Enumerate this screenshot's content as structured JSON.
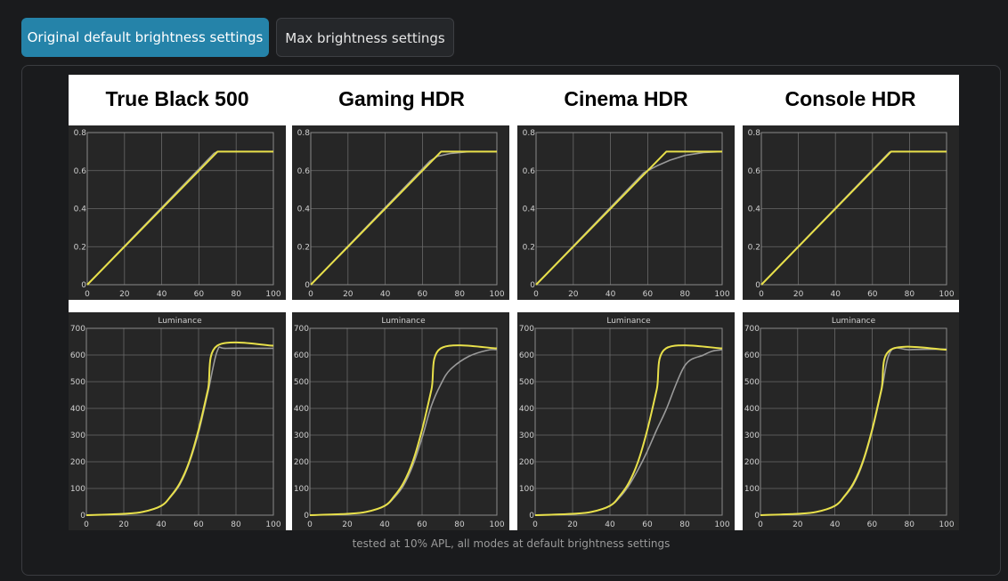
{
  "tabs": [
    {
      "label": "Original default brightness settings",
      "active": true
    },
    {
      "label": "Max brightness settings",
      "active": false
    }
  ],
  "caption": "tested at 10% APL, all modes at default brightness settings",
  "colors": {
    "target": "#e8e04a",
    "measured": "#9a9a9a",
    "plot_bg": "#262626",
    "grid": "#6a6a6a",
    "axis_text": "#d0d0d0",
    "accent": "#2583a9"
  },
  "chart_data": [
    {
      "type": "line",
      "mode": "True Black 500",
      "row": "eotf",
      "xlim": [
        0,
        100
      ],
      "ylim": [
        0,
        0.8
      ],
      "x_ticks": [
        0,
        20,
        40,
        60,
        80,
        100
      ],
      "y_ticks": [
        0,
        0.2,
        0.4,
        0.6,
        0.8
      ],
      "grid": true,
      "series": [
        {
          "role": "target",
          "x": [
            0,
            70,
            100
          ],
          "y": [
            0,
            0.7,
            0.7
          ]
        },
        {
          "role": "measured",
          "x": [
            0,
            68,
            70,
            100
          ],
          "y": [
            0,
            0.69,
            0.7,
            0.7
          ]
        }
      ]
    },
    {
      "type": "line",
      "mode": "Gaming HDR",
      "row": "eotf",
      "xlim": [
        0,
        100
      ],
      "ylim": [
        0,
        0.8
      ],
      "x_ticks": [
        0,
        20,
        40,
        60,
        80,
        100
      ],
      "y_ticks": [
        0,
        0.2,
        0.4,
        0.6,
        0.8
      ],
      "grid": true,
      "series": [
        {
          "role": "target",
          "x": [
            0,
            70,
            100
          ],
          "y": [
            0,
            0.7,
            0.7
          ]
        },
        {
          "role": "measured",
          "x": [
            0,
            64,
            68,
            75,
            85,
            100
          ],
          "y": [
            0,
            0.65,
            0.675,
            0.69,
            0.7,
            0.7
          ]
        }
      ]
    },
    {
      "type": "line",
      "mode": "Cinema HDR",
      "row": "eotf",
      "xlim": [
        0,
        100
      ],
      "ylim": [
        0,
        0.8
      ],
      "x_ticks": [
        0,
        20,
        40,
        60,
        80,
        100
      ],
      "y_ticks": [
        0,
        0.2,
        0.4,
        0.6,
        0.8
      ],
      "grid": true,
      "series": [
        {
          "role": "target",
          "x": [
            0,
            70,
            100
          ],
          "y": [
            0,
            0.7,
            0.7
          ]
        },
        {
          "role": "measured",
          "x": [
            0,
            58,
            65,
            72,
            80,
            90,
            100
          ],
          "y": [
            0,
            0.59,
            0.625,
            0.655,
            0.68,
            0.695,
            0.7
          ]
        }
      ]
    },
    {
      "type": "line",
      "mode": "Console HDR",
      "row": "eotf",
      "xlim": [
        0,
        100
      ],
      "ylim": [
        0,
        0.8
      ],
      "x_ticks": [
        0,
        20,
        40,
        60,
        80,
        100
      ],
      "y_ticks": [
        0,
        0.2,
        0.4,
        0.6,
        0.8
      ],
      "grid": true,
      "series": [
        {
          "role": "target",
          "x": [
            0,
            70,
            100
          ],
          "y": [
            0,
            0.7,
            0.7
          ]
        },
        {
          "role": "measured",
          "x": [
            0,
            69,
            70,
            100
          ],
          "y": [
            0,
            0.695,
            0.7,
            0.7
          ]
        }
      ]
    },
    {
      "type": "line",
      "mode": "True Black 500",
      "row": "luminance",
      "title": "Luminance",
      "xlim": [
        0,
        100
      ],
      "ylim": [
        0,
        700
      ],
      "x_ticks": [
        0,
        20,
        40,
        60,
        80,
        100
      ],
      "y_ticks": [
        0,
        100,
        200,
        300,
        400,
        500,
        600,
        700
      ],
      "grid": true,
      "series": [
        {
          "role": "target",
          "x": [
            0,
            20,
            30,
            40,
            45,
            50,
            55,
            60,
            65,
            70,
            100
          ],
          "y": [
            0,
            5,
            12,
            35,
            70,
            120,
            200,
            320,
            470,
            635,
            635
          ]
        },
        {
          "role": "measured",
          "x": [
            0,
            20,
            30,
            40,
            45,
            50,
            55,
            60,
            65,
            70,
            75,
            100
          ],
          "y": [
            0,
            5,
            12,
            34,
            68,
            115,
            195,
            310,
            460,
            615,
            625,
            625
          ]
        }
      ]
    },
    {
      "type": "line",
      "mode": "Gaming HDR",
      "row": "luminance",
      "title": "Luminance",
      "xlim": [
        0,
        100
      ],
      "ylim": [
        0,
        700
      ],
      "x_ticks": [
        0,
        20,
        40,
        60,
        80,
        100
      ],
      "y_ticks": [
        0,
        100,
        200,
        300,
        400,
        500,
        600,
        700
      ],
      "grid": true,
      "series": [
        {
          "role": "target",
          "x": [
            0,
            20,
            30,
            40,
            45,
            50,
            55,
            60,
            65,
            70,
            100
          ],
          "y": [
            0,
            5,
            12,
            35,
            70,
            120,
            200,
            320,
            470,
            625,
            625
          ]
        },
        {
          "role": "measured",
          "x": [
            0,
            20,
            30,
            40,
            45,
            50,
            55,
            60,
            65,
            70,
            75,
            85,
            95,
            100
          ],
          "y": [
            0,
            5,
            12,
            34,
            65,
            110,
            185,
            290,
            410,
            490,
            545,
            595,
            618,
            620
          ]
        }
      ]
    },
    {
      "type": "line",
      "mode": "Cinema HDR",
      "row": "luminance",
      "title": "Luminance",
      "xlim": [
        0,
        100
      ],
      "ylim": [
        0,
        700
      ],
      "x_ticks": [
        0,
        20,
        40,
        60,
        80,
        100
      ],
      "y_ticks": [
        0,
        100,
        200,
        300,
        400,
        500,
        600,
        700
      ],
      "grid": true,
      "series": [
        {
          "role": "target",
          "x": [
            0,
            20,
            30,
            40,
            45,
            50,
            55,
            60,
            65,
            70,
            100
          ],
          "y": [
            0,
            5,
            12,
            35,
            70,
            120,
            200,
            320,
            470,
            625,
            625
          ]
        },
        {
          "role": "measured",
          "x": [
            0,
            20,
            30,
            40,
            45,
            50,
            55,
            60,
            65,
            70,
            80,
            90,
            95,
            100
          ],
          "y": [
            0,
            5,
            12,
            35,
            65,
            110,
            170,
            240,
            320,
            395,
            560,
            600,
            615,
            620
          ]
        }
      ]
    },
    {
      "type": "line",
      "mode": "Console HDR",
      "row": "luminance",
      "title": "Luminance",
      "xlim": [
        0,
        100
      ],
      "ylim": [
        0,
        700
      ],
      "x_ticks": [
        0,
        20,
        40,
        60,
        80,
        100
      ],
      "y_ticks": [
        0,
        100,
        200,
        300,
        400,
        500,
        600,
        700
      ],
      "grid": true,
      "series": [
        {
          "role": "target",
          "x": [
            0,
            20,
            30,
            40,
            45,
            50,
            55,
            60,
            65,
            70,
            100
          ],
          "y": [
            0,
            5,
            12,
            35,
            70,
            120,
            200,
            320,
            470,
            620,
            620
          ]
        },
        {
          "role": "measured",
          "x": [
            0,
            20,
            30,
            40,
            45,
            50,
            55,
            60,
            65,
            70,
            80,
            100
          ],
          "y": [
            0,
            5,
            12,
            34,
            68,
            115,
            195,
            315,
            465,
            615,
            620,
            622
          ]
        }
      ]
    }
  ]
}
